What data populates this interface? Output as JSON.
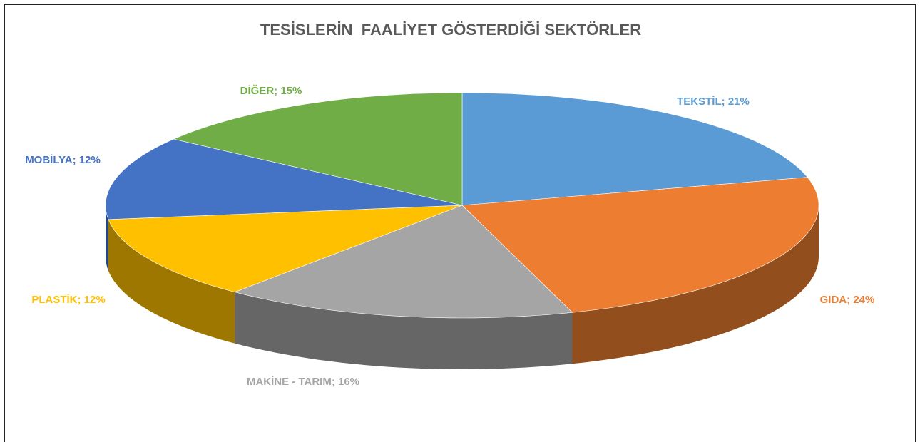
{
  "chart_data": {
    "type": "pie3d",
    "title": "TESİSLERİN  FAALİYET GÖSTERDİĞİ SEKTÖRLER",
    "categories": [
      "TEKSTİL",
      "GIDA",
      "MAKİNE - TARIM",
      "PLASTİK",
      "MOBİLYA",
      "DİĞER"
    ],
    "values": [
      21,
      24,
      16,
      12,
      12,
      15
    ],
    "value_labels": [
      "21%",
      "24%",
      "16%",
      "12%",
      "12%",
      "15%"
    ],
    "label_separator": "; ",
    "colors": [
      "#5b9bd5",
      "#ed7d31",
      "#a5a5a5",
      "#ffc000",
      "#4472c4",
      "#70ad47"
    ]
  }
}
